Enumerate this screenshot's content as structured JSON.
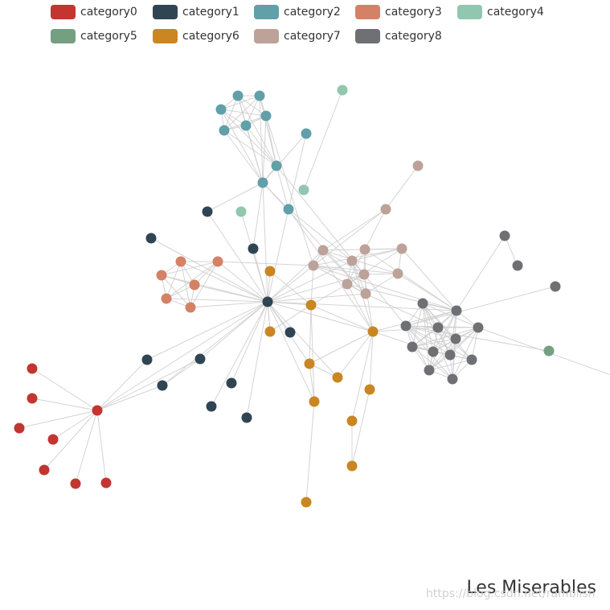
{
  "chart_data": {
    "type": "network",
    "title": "Les Miserables",
    "legend_placement": "top",
    "categories": [
      {
        "name": "category0",
        "color": "#c23531"
      },
      {
        "name": "category1",
        "color": "#2f4554"
      },
      {
        "name": "category2",
        "color": "#61a0a8"
      },
      {
        "name": "category3",
        "color": "#d48265"
      },
      {
        "name": "category4",
        "color": "#91c7ae"
      },
      {
        "name": "category5",
        "color": "#749f83"
      },
      {
        "name": "category6",
        "color": "#ca8622"
      },
      {
        "name": "category7",
        "color": "#bda29a"
      },
      {
        "name": "category8",
        "color": "#6e7074"
      }
    ],
    "edge_color": "#cccccc"
  },
  "watermark": "https://blog.csdn.net/ramblish"
}
